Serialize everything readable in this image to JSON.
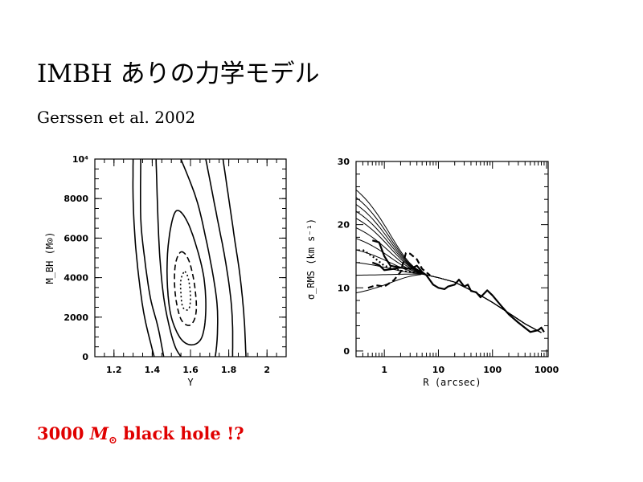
{
  "slide": {
    "title": "IMBH ありの力学モデル",
    "subtitle": "Gerssen et al. 2002",
    "note_prefix": "3000 ",
    "note_mass": "M",
    "note_sun": "⊙",
    "note_suffix": " black hole !?",
    "note_color": "#e00000"
  },
  "chart_data": [
    {
      "type": "contour",
      "title": "",
      "xlabel": "Υ",
      "ylabel": "M_BH (M⊙)",
      "xlim": [
        1.1,
        2.1
      ],
      "ylim": [
        0,
        10000
      ],
      "xticks": [
        1.2,
        1.4,
        1.6,
        1.8,
        2
      ],
      "xtick_labels": [
        "1.2",
        "1.4",
        "1.6",
        "1.8",
        "2"
      ],
      "yticks": [
        0,
        2000,
        4000,
        6000,
        8000,
        10000
      ],
      "ytick_labels": [
        "0",
        "2000",
        "4000",
        "6000",
        "8000",
        "10⁴"
      ],
      "contours": [
        {
          "style": "solid",
          "points": [
            [
              1.3,
              10000
            ],
            [
              1.3,
              8000
            ],
            [
              1.31,
              6000
            ],
            [
              1.33,
              4000
            ],
            [
              1.36,
              2000
            ],
            [
              1.41,
              0
            ]
          ]
        },
        {
          "style": "solid",
          "points": [
            [
              1.77,
              10000
            ],
            [
              1.8,
              8000
            ],
            [
              1.83,
              6000
            ],
            [
              1.86,
              4000
            ],
            [
              1.88,
              2000
            ],
            [
              1.89,
              0
            ]
          ]
        },
        {
          "style": "solid",
          "points": [
            [
              1.34,
              10000
            ],
            [
              1.34,
              7000
            ],
            [
              1.36,
              5000
            ],
            [
              1.39,
              3000
            ],
            [
              1.43,
              1500
            ],
            [
              1.46,
              0
            ]
          ]
        },
        {
          "style": "solid",
          "points": [
            [
              1.68,
              10000
            ],
            [
              1.74,
              7000
            ],
            [
              1.78,
              5000
            ],
            [
              1.81,
              3000
            ],
            [
              1.82,
              1500
            ],
            [
              1.82,
              0
            ]
          ]
        },
        {
          "style": "solid",
          "points": [
            [
              1.42,
              10000
            ],
            [
              1.43,
              7000
            ],
            [
              1.44,
              5000
            ],
            [
              1.46,
              3000
            ],
            [
              1.49,
              1500
            ],
            [
              1.52,
              500
            ],
            [
              1.55,
              0
            ]
          ]
        },
        {
          "style": "solid",
          "points": [
            [
              1.55,
              10000
            ],
            [
              1.63,
              8000
            ],
            [
              1.68,
              6000
            ],
            [
              1.72,
              4000
            ],
            [
              1.74,
              2500
            ],
            [
              1.74,
              1000
            ],
            [
              1.73,
              0
            ]
          ]
        },
        {
          "style": "solid",
          "closed": true,
          "points": [
            [
              1.53,
              7400
            ],
            [
              1.58,
              6900
            ],
            [
              1.63,
              5600
            ],
            [
              1.67,
              4000
            ],
            [
              1.68,
              2300
            ],
            [
              1.66,
              1000
            ],
            [
              1.61,
              600
            ],
            [
              1.55,
              900
            ],
            [
              1.5,
              2000
            ],
            [
              1.48,
              3500
            ],
            [
              1.48,
              5200
            ],
            [
              1.5,
              6700
            ]
          ]
        },
        {
          "style": "dashed",
          "closed": true,
          "points": [
            [
              1.55,
              5300
            ],
            [
              1.59,
              4900
            ],
            [
              1.62,
              3700
            ],
            [
              1.63,
              2300
            ],
            [
              1.6,
              1600
            ],
            [
              1.55,
              1900
            ],
            [
              1.52,
              3200
            ],
            [
              1.52,
              4600
            ]
          ]
        },
        {
          "style": "dotted",
          "closed": true,
          "points": [
            [
              1.57,
              4300
            ],
            [
              1.59,
              3900
            ],
            [
              1.6,
              3000
            ],
            [
              1.59,
              2400
            ],
            [
              1.56,
              2500
            ],
            [
              1.55,
              3200
            ],
            [
              1.55,
              3900
            ]
          ]
        }
      ]
    },
    {
      "type": "line",
      "title": "",
      "xlabel": "R (arcsec)",
      "ylabel": "σ_RMS (km s⁻¹)",
      "xscale": "log",
      "xlim": [
        0.3,
        1070
      ],
      "ylim": [
        -0.9,
        30
      ],
      "xticks": [
        1,
        10,
        100,
        1000
      ],
      "xtick_labels": [
        "1",
        "10",
        "100",
        "1000"
      ],
      "yticks": [
        0,
        10,
        20,
        30
      ],
      "ytick_labels": [
        "0",
        "10",
        "20",
        "30"
      ],
      "model_central_sigma": [
        25.5,
        24.3,
        23.2,
        22.1,
        21,
        19.5,
        17.8,
        16,
        14,
        12,
        9.2
      ],
      "model_outer": [
        [
          5,
          12.2
        ],
        [
          10,
          11.6
        ],
        [
          20,
          10.9
        ],
        [
          50,
          9.2
        ],
        [
          100,
          7.7
        ],
        [
          200,
          6
        ],
        [
          400,
          4.3
        ],
        [
          800,
          2.9
        ]
      ],
      "data_series": [
        {
          "style": "solid",
          "points": [
            [
              0.6,
              17.5
            ],
            [
              0.8,
              17.2
            ],
            [
              1.0,
              15
            ],
            [
              1.3,
              13.5
            ],
            [
              2,
              13.2
            ],
            [
              3,
              13
            ],
            [
              4,
              13.5
            ],
            [
              5,
              12.5
            ],
            [
              6,
              12
            ],
            [
              8,
              10.5
            ],
            [
              10,
              10
            ],
            [
              13,
              9.8
            ],
            [
              15,
              10.2
            ],
            [
              20,
              10.5
            ],
            [
              24,
              11.3
            ],
            [
              30,
              10.2
            ],
            [
              35,
              10.5
            ],
            [
              40,
              9.5
            ],
            [
              50,
              9.3
            ],
            [
              60,
              8.5
            ],
            [
              80,
              9.6
            ],
            [
              100,
              8.8
            ],
            [
              150,
              7
            ],
            [
              200,
              5.8
            ],
            [
              300,
              4.5
            ],
            [
              500,
              3
            ],
            [
              700,
              3.3
            ],
            [
              800,
              3.7
            ],
            [
              900,
              3
            ]
          ]
        },
        {
          "style": "dashed",
          "points": [
            [
              0.5,
              10
            ],
            [
              0.7,
              10.4
            ],
            [
              1,
              10.2
            ],
            [
              1.5,
              11.2
            ],
            [
              2,
              12.5
            ],
            [
              2.5,
              15.5
            ],
            [
              3,
              15.4
            ],
            [
              4,
              14.5
            ],
            [
              5,
              13
            ],
            [
              7,
              12
            ]
          ]
        },
        {
          "style": "dotted",
          "points": [
            [
              0.4,
              16
            ],
            [
              0.6,
              15
            ],
            [
              1,
              13.5
            ],
            [
              2,
              12.7
            ],
            [
              3,
              12.5
            ],
            [
              5,
              12.3
            ]
          ]
        },
        {
          "style": "solid",
          "points": [
            [
              0.6,
              14
            ],
            [
              0.8,
              13.6
            ],
            [
              1,
              12.8
            ],
            [
              1.5,
              13
            ],
            [
              2,
              13.2
            ]
          ]
        }
      ]
    }
  ]
}
